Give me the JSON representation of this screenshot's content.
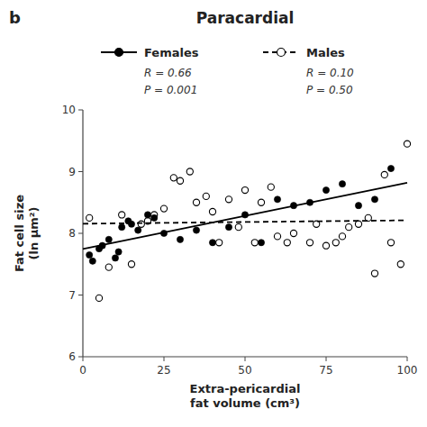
{
  "chart_data": {
    "type": "scatter",
    "title": "Paracardial",
    "annotations": [
      "b"
    ],
    "xlabel": "Extra-pericardial\nfat volume (cm³)",
    "ylabel": "Fat cell size\n(ln μm²)",
    "xlim": [
      0,
      100
    ],
    "ylim": [
      6,
      10
    ],
    "xticks": [
      0,
      25,
      50,
      75,
      100
    ],
    "yticks": [
      6,
      7,
      8,
      9,
      10
    ],
    "grid": false,
    "legend": "top",
    "series": [
      {
        "name": "Females",
        "type": "scatter",
        "color": "#000000",
        "marker": "filled-circle",
        "annotations": [
          "R = 0.66",
          "P = 0.001"
        ],
        "x": [
          2,
          3,
          5,
          6,
          8,
          10,
          11,
          12,
          14,
          15,
          17,
          20,
          22,
          25,
          30,
          35,
          40,
          45,
          50,
          55,
          60,
          65,
          70,
          75,
          80,
          85,
          90,
          95
        ],
        "values": [
          7.65,
          7.55,
          7.75,
          7.8,
          7.9,
          7.6,
          7.7,
          8.1,
          8.2,
          8.15,
          8.05,
          8.3,
          8.25,
          8.0,
          7.9,
          8.05,
          7.85,
          8.1,
          8.3,
          7.85,
          8.55,
          8.45,
          8.5,
          8.7,
          8.8,
          8.45,
          8.55,
          9.05
        ]
      },
      {
        "name": "Males",
        "type": "scatter",
        "color": "#000000",
        "marker": "open-circle",
        "annotations": [
          "R = 0.10",
          "P = 0.50"
        ],
        "x": [
          2,
          5,
          8,
          12,
          15,
          18,
          20,
          22,
          25,
          28,
          30,
          33,
          35,
          38,
          40,
          42,
          45,
          48,
          50,
          53,
          55,
          58,
          60,
          63,
          65,
          70,
          72,
          75,
          78,
          80,
          82,
          85,
          88,
          90,
          93,
          95,
          98,
          100
        ],
        "values": [
          8.25,
          6.95,
          7.45,
          8.3,
          7.5,
          8.15,
          8.2,
          8.3,
          8.4,
          8.9,
          8.85,
          9.0,
          8.5,
          8.6,
          8.35,
          7.85,
          8.55,
          8.1,
          8.7,
          7.85,
          8.5,
          8.75,
          7.95,
          7.85,
          8.0,
          7.85,
          8.15,
          7.8,
          7.85,
          7.95,
          8.1,
          8.15,
          8.25,
          7.35,
          8.95,
          7.85,
          7.5,
          9.45
        ]
      },
      {
        "type": "line",
        "color": "#000000",
        "line_style": "solid",
        "x": [
          0,
          100
        ],
        "values": [
          7.7465,
          8.8181
        ]
      },
      {
        "type": "line",
        "color": "#000000",
        "line_style": "dashed",
        "x": [
          0,
          100
        ],
        "values": [
          8.1557,
          8.2106
        ]
      }
    ]
  }
}
